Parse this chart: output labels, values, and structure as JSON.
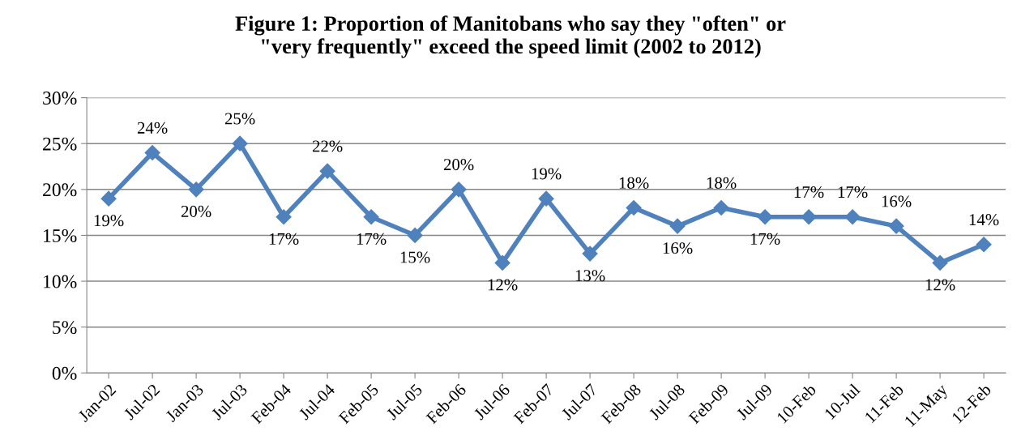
{
  "chart_data": {
    "type": "line",
    "title": "Figure 1: Proportion of Manitobans who say they \"often\" or\n\"very frequently\" exceed the speed limit (2002 to 2012)",
    "categories": [
      "Jan-02",
      "Jul-02",
      "Jan-03",
      "Jul-03",
      "Feb-04",
      "Jul-04",
      "Feb-05",
      "Jul-05",
      "Feb-06",
      "Jul-06",
      "Feb-07",
      "Jul-07",
      "Feb-08",
      "Jul-08",
      "Feb-09",
      "Jul-09",
      "10-Feb",
      "10-Jul",
      "11-Feb",
      "11-May",
      "12-Feb"
    ],
    "series": [
      {
        "color": "#4f81bd",
        "values": [
          19,
          24,
          20,
          25,
          17,
          22,
          17,
          15,
          20,
          12,
          19,
          13,
          18,
          16,
          18,
          17,
          17,
          17,
          16,
          12,
          14
        ],
        "value_labels": [
          "19%",
          "24%",
          "20%",
          "25%",
          "17%",
          "22%",
          "17%",
          "15%",
          "20%",
          "12%",
          "19%",
          "13%",
          "18%",
          "16%",
          "18%",
          "17%",
          "17%",
          "17%",
          "16%",
          "12%",
          "14%"
        ]
      }
    ],
    "ylim": [
      0,
      30
    ],
    "yticks": [
      {
        "value": 0,
        "label": "0%"
      },
      {
        "value": 5,
        "label": "5%"
      },
      {
        "value": 10,
        "label": "10%"
      },
      {
        "value": 15,
        "label": "15%"
      },
      {
        "value": 20,
        "label": "20%"
      },
      {
        "value": 25,
        "label": "25%"
      },
      {
        "value": 30,
        "label": "30%"
      }
    ],
    "grid": "y",
    "marker": "diamond",
    "line_style": "solid",
    "legend": false
  }
}
